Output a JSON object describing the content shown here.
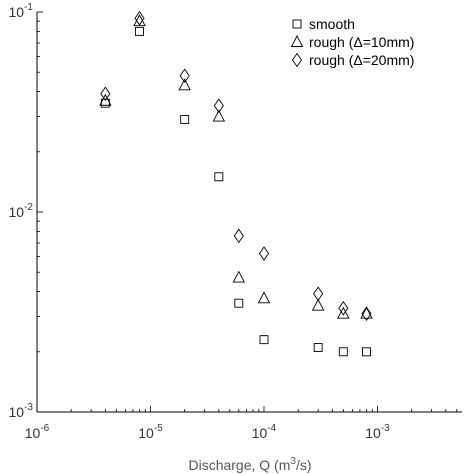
{
  "chart_data": {
    "type": "scatter",
    "xscale": "log",
    "yscale": "log",
    "xlim": [
      1e-06,
      0.01
    ],
    "ylim": [
      0.001,
      0.1
    ],
    "xticks": [
      {
        "base": "10",
        "exp": "-6",
        "value": 1e-06
      },
      {
        "base": "10",
        "exp": "-5",
        "value": 1e-05
      },
      {
        "base": "10",
        "exp": "-4",
        "value": 0.0001
      },
      {
        "base": "10",
        "exp": "-3",
        "value": 0.001
      }
    ],
    "yticks": [
      {
        "base": "10",
        "exp": "-3",
        "value": 0.001
      },
      {
        "base": "10",
        "exp": "-2",
        "value": 0.01
      },
      {
        "base": "10",
        "exp": "-1",
        "value": 0.1
      }
    ],
    "xlabel": "Discharge, Q (m",
    "xlabel_sup": "3",
    "xlabel_suffix": "/s)",
    "ylabel": "",
    "title": "",
    "legend_position": "top-right",
    "grid": false,
    "series": [
      {
        "name": "smooth",
        "marker": "square",
        "x": [
          4e-06,
          8e-06,
          2e-05,
          4e-05,
          6e-05,
          0.0001,
          0.0003,
          0.0005,
          0.0008
        ],
        "y": [
          0.035,
          0.08,
          0.029,
          0.015,
          0.0035,
          0.0023,
          0.0021,
          0.002,
          0.002
        ]
      },
      {
        "name": "rough (Δ=10mm)",
        "marker": "triangle",
        "x": [
          4e-06,
          8e-06,
          2e-05,
          4e-05,
          6e-05,
          0.0001,
          0.0003,
          0.0005,
          0.0008
        ],
        "y": [
          0.036,
          0.09,
          0.043,
          0.03,
          0.0047,
          0.0037,
          0.0034,
          0.0031,
          0.0031
        ]
      },
      {
        "name": "rough (Δ=20mm)",
        "marker": "diamond",
        "x": [
          4e-06,
          8e-06,
          2e-05,
          4e-05,
          6e-05,
          0.0001,
          0.0003,
          0.0005,
          0.0008
        ],
        "y": [
          0.039,
          0.093,
          0.048,
          0.034,
          0.0076,
          0.0062,
          0.0039,
          0.0033,
          0.0031
        ]
      }
    ]
  }
}
